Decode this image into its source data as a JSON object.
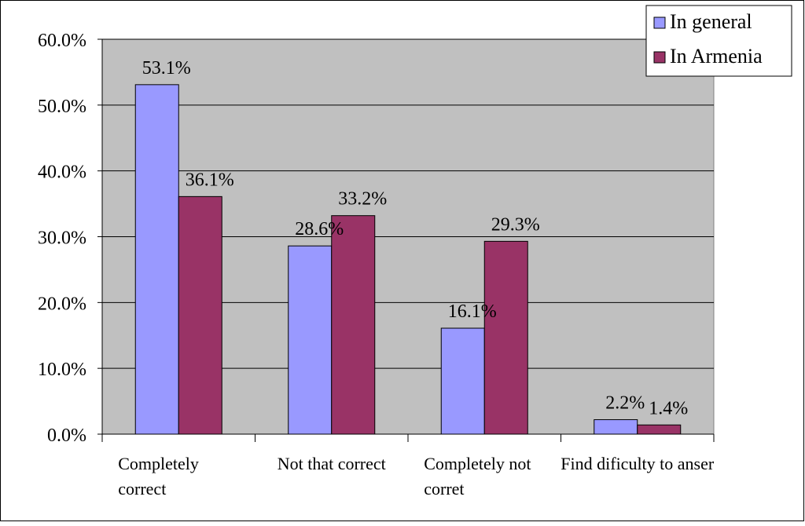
{
  "chart_data": {
    "type": "bar",
    "categories": [
      "Completely correct",
      "Not that correct",
      "Completely not corret",
      "Find dificulty to anser"
    ],
    "category_label_lines": [
      [
        "Completely",
        "correct"
      ],
      [
        "Not that correct"
      ],
      [
        "Completely not",
        "corret"
      ],
      [
        "Find dificulty to anser"
      ]
    ],
    "series": [
      {
        "name": "In general",
        "values": [
          53.1,
          28.6,
          16.1,
          2.2
        ],
        "data_labels": [
          "53.1%",
          "28.6%",
          "16.1%",
          "2.2%"
        ],
        "color": "#9999ff"
      },
      {
        "name": "In Armenia",
        "values": [
          36.1,
          33.2,
          29.3,
          1.4
        ],
        "data_labels": [
          "36.1%",
          "33.2%",
          "29.3%",
          "1.4%"
        ],
        "color": "#993366"
      }
    ],
    "ylim": [
      0,
      60
    ],
    "yticks": [
      0,
      10,
      20,
      30,
      40,
      50,
      60
    ],
    "ytick_labels": [
      "0.0%",
      "10.0%",
      "20.0%",
      "30.0%",
      "40.0%",
      "50.0%",
      "60.0%"
    ],
    "grid": true,
    "plot_background": "#c0c0c0",
    "legend_position": "top-right",
    "title": "",
    "xlabel": "",
    "ylabel": ""
  }
}
